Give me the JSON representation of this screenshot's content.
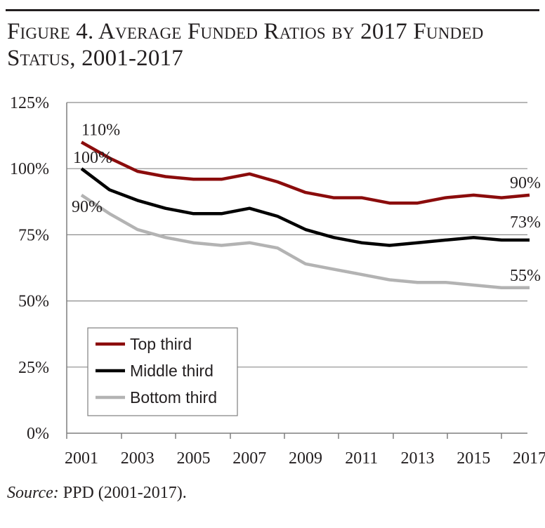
{
  "title": {
    "line1": "Figure 4. Average Funded Ratios by 2017 Funded",
    "line2": "Status, 2001-2017"
  },
  "source": {
    "label": "Source:",
    "text": "PPD (2001-2017)."
  },
  "colors": {
    "top_third": "#8b0c0c",
    "middle_third": "#000000",
    "bottom_third": "#b3b3b3",
    "grid": "#8c8c8c",
    "axis": "#7f7f7f",
    "text": "#231f20"
  },
  "chart_data": {
    "type": "line",
    "title": "Figure 4. Average Funded Ratios by 2017 Funded Status, 2001-2017",
    "xlabel": "",
    "ylabel": "",
    "x": [
      2001,
      2002,
      2003,
      2004,
      2005,
      2006,
      2007,
      2008,
      2009,
      2010,
      2011,
      2012,
      2013,
      2014,
      2015,
      2016,
      2017
    ],
    "x_ticks": [
      "2001",
      "2003",
      "2005",
      "2007",
      "2009",
      "2011",
      "2013",
      "2015",
      "2017"
    ],
    "y_ticks": [
      "0%",
      "25%",
      "50%",
      "75%",
      "100%",
      "125%"
    ],
    "ylim": [
      0,
      125
    ],
    "grid": true,
    "legend_position": "bottom-left",
    "series": [
      {
        "name": "Top third",
        "values": [
          110,
          104,
          99,
          97,
          96,
          96,
          98,
          95,
          91,
          89,
          89,
          87,
          87,
          89,
          90,
          89,
          90
        ],
        "start_label": "110%",
        "end_label": "90%"
      },
      {
        "name": "Middle third",
        "values": [
          100,
          92,
          88,
          85,
          83,
          83,
          85,
          82,
          77,
          74,
          72,
          71,
          72,
          73,
          74,
          73,
          73
        ],
        "start_label": "100%",
        "end_label": "73%"
      },
      {
        "name": "Bottom third",
        "values": [
          90,
          83,
          77,
          74,
          72,
          71,
          72,
          70,
          64,
          62,
          60,
          58,
          57,
          57,
          56,
          55,
          55
        ],
        "start_label": "90%",
        "end_label": "55%"
      }
    ]
  }
}
